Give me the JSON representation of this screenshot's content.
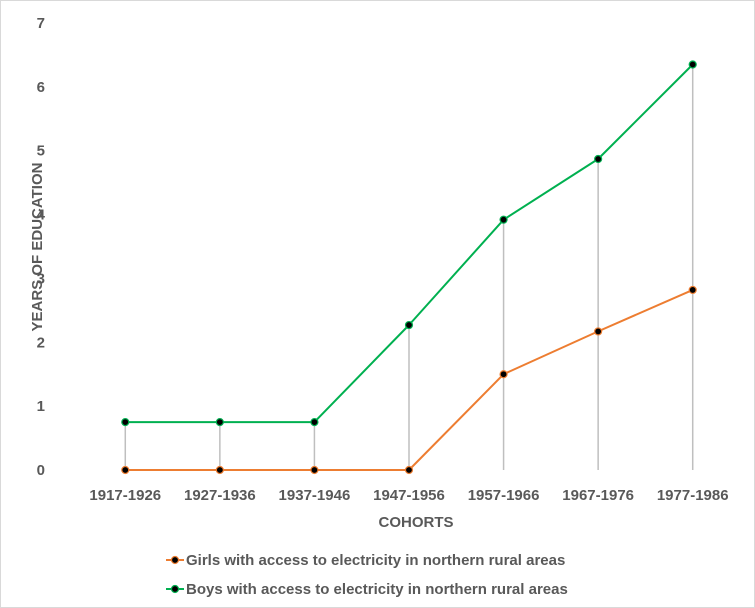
{
  "chart_data": {
    "type": "line",
    "xlabel": "COHORTS",
    "ylabel": "YEARS OF EDUCATION",
    "ylim": [
      0,
      7
    ],
    "yticks": [
      0,
      1,
      2,
      3,
      4,
      5,
      6,
      7
    ],
    "grid": false,
    "drop_lines": true,
    "legend_position": "bottom",
    "categories": [
      "1917-1926",
      "1927-1936",
      "1937-1946",
      "1947-1956",
      "1957-1966",
      "1967-1976",
      "1977-1986"
    ],
    "series": [
      {
        "name": "Girls with access to electricity in northern rural areas",
        "color": "#ED7D31",
        "values": [
          0,
          0,
          0,
          0,
          1.5,
          2.17,
          2.82
        ]
      },
      {
        "name": "Boys with access to electricity in northern rural areas",
        "color": "#00B050",
        "values": [
          0.75,
          0.75,
          0.75,
          2.27,
          3.92,
          4.87,
          6.35
        ]
      }
    ],
    "marker_color": "#000000",
    "drop_line_color": "#BFBFBF"
  }
}
